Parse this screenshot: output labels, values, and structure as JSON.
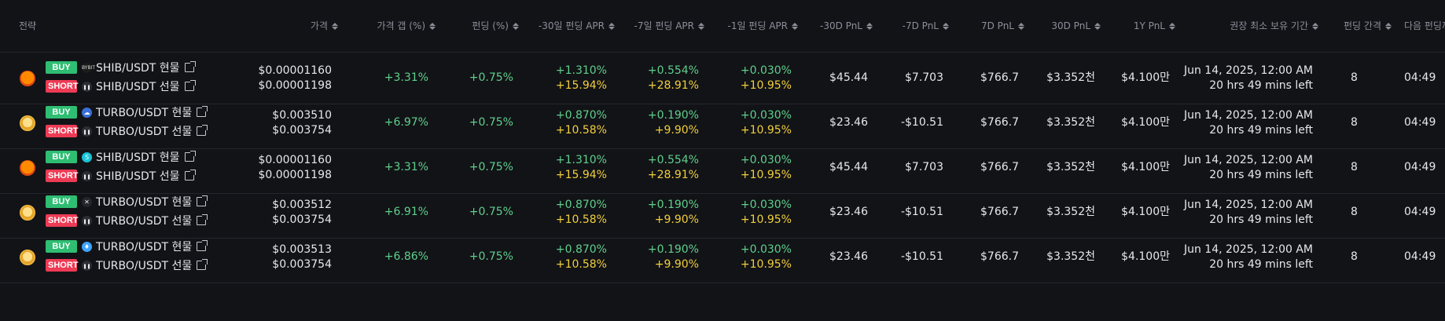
{
  "headers": {
    "strategy": "전략",
    "price": "가격",
    "price_gap": "가격 갭 (%)",
    "funding": "펀딩 (%)",
    "apr30": "-30일 펀딩 APR",
    "apr7": "-7일 펀딩 APR",
    "apr1": "-1일 펀딩 APR",
    "pnl30neg": "-30D PnL",
    "pnl7neg": "-7D PnL",
    "pnl7": "7D PnL",
    "pnl30": "30D PnL",
    "pnl1y": "1Y PnL",
    "min_hold": "권장 최소 보유 기간",
    "interval": "펀딩 간격",
    "next": "다음 펀딩까"
  },
  "rows": [
    {
      "coin": "shib",
      "buy_label": "BUY",
      "buy_exchange": "bybit-icon",
      "buy_pair": "SHIB/USDT 현물",
      "short_label": "SHORT",
      "short_exchange": "pause-exchange-icon",
      "short_pair": "SHIB/USDT 선물",
      "price_spot": "$0.00001160",
      "price_fut": "$0.00001198",
      "gap": "+3.31%",
      "funding": "+0.75%",
      "apr30_a": "+1.310%",
      "apr30_b": "+15.94%",
      "apr7_a": "+0.554%",
      "apr7_b": "+28.91%",
      "apr1_a": "+0.030%",
      "apr1_b": "+10.95%",
      "pnl30neg": "$45.44",
      "pnl7neg": "$7.703",
      "pnl7": "$766.7",
      "pnl30": "$3.352천",
      "pnl1y": "$4.100만",
      "hold_date": "Jun 14, 2025, 12:00 AM",
      "hold_left": "20 hrs 49 mins left",
      "interval": "8",
      "next": "04:49"
    },
    {
      "coin": "turbo",
      "buy_label": "BUY",
      "buy_exchange": "cloud-exchange-icon",
      "buy_pair": "TURBO/USDT 현물",
      "short_label": "SHORT",
      "short_exchange": "pause-exchange-icon",
      "short_pair": "TURBO/USDT 선물",
      "price_spot": "$0.003510",
      "price_fut": "$0.003754",
      "gap": "+6.97%",
      "funding": "+0.75%",
      "apr30_a": "+0.870%",
      "apr30_b": "+10.58%",
      "apr7_a": "+0.190%",
      "apr7_b": "+9.90%",
      "apr1_a": "+0.030%",
      "apr1_b": "+10.95%",
      "pnl30neg": "$23.46",
      "pnl7neg": "-$10.51",
      "pnl7": "$766.7",
      "pnl30": "$3.352천",
      "pnl1y": "$4.100만",
      "hold_date": "Jun 14, 2025, 12:00 AM",
      "hold_left": "20 hrs 49 mins left",
      "interval": "8",
      "next": "04:49"
    },
    {
      "coin": "shib",
      "buy_label": "BUY",
      "buy_exchange": "cyan-exchange-icon",
      "buy_pair": "SHIB/USDT 현물",
      "short_label": "SHORT",
      "short_exchange": "pause-exchange-icon",
      "short_pair": "SHIB/USDT 선물",
      "price_spot": "$0.00001160",
      "price_fut": "$0.00001198",
      "gap": "+3.31%",
      "funding": "+0.75%",
      "apr30_a": "+1.310%",
      "apr30_b": "+15.94%",
      "apr7_a": "+0.554%",
      "apr7_b": "+28.91%",
      "apr1_a": "+0.030%",
      "apr1_b": "+10.95%",
      "pnl30neg": "$45.44",
      "pnl7neg": "$7.703",
      "pnl7": "$766.7",
      "pnl30": "$3.352천",
      "pnl1y": "$4.100만",
      "hold_date": "Jun 14, 2025, 12:00 AM",
      "hold_left": "20 hrs 49 mins left",
      "interval": "8",
      "next": "04:49"
    },
    {
      "coin": "turbo",
      "buy_label": "BUY",
      "buy_exchange": "cross-exchange-icon",
      "buy_pair": "TURBO/USDT 현물",
      "short_label": "SHORT",
      "short_exchange": "pause-exchange-icon",
      "short_pair": "TURBO/USDT 선물",
      "price_spot": "$0.003512",
      "price_fut": "$0.003754",
      "gap": "+6.91%",
      "funding": "+0.75%",
      "apr30_a": "+0.870%",
      "apr30_b": "+10.58%",
      "apr7_a": "+0.190%",
      "apr7_b": "+9.90%",
      "apr1_a": "+0.030%",
      "apr1_b": "+10.95%",
      "pnl30neg": "$23.46",
      "pnl7neg": "-$10.51",
      "pnl7": "$766.7",
      "pnl30": "$3.352천",
      "pnl1y": "$4.100만",
      "hold_date": "Jun 14, 2025, 12:00 AM",
      "hold_left": "20 hrs 49 mins left",
      "interval": "8",
      "next": "04:49"
    },
    {
      "coin": "turbo",
      "buy_label": "BUY",
      "buy_exchange": "drop-exchange-icon",
      "buy_pair": "TURBO/USDT 현물",
      "short_label": "SHORT",
      "short_exchange": "pause-exchange-icon",
      "short_pair": "TURBO/USDT 선물",
      "price_spot": "$0.003513",
      "price_fut": "$0.003754",
      "gap": "+6.86%",
      "funding": "+0.75%",
      "apr30_a": "+0.870%",
      "apr30_b": "+10.58%",
      "apr7_a": "+0.190%",
      "apr7_b": "+9.90%",
      "apr1_a": "+0.030%",
      "apr1_b": "+10.95%",
      "pnl30neg": "$23.46",
      "pnl7neg": "-$10.51",
      "pnl7": "$766.7",
      "pnl30": "$3.352천",
      "pnl1y": "$4.100만",
      "hold_date": "Jun 14, 2025, 12:00 AM",
      "hold_left": "20 hrs 49 mins left",
      "interval": "8",
      "next": "04:49"
    }
  ],
  "colors": {
    "background": "#121317",
    "positive": "#5fd08c",
    "highlight": "#f1cf3c",
    "buy": "#2ebd72",
    "short": "#ee3b55"
  }
}
